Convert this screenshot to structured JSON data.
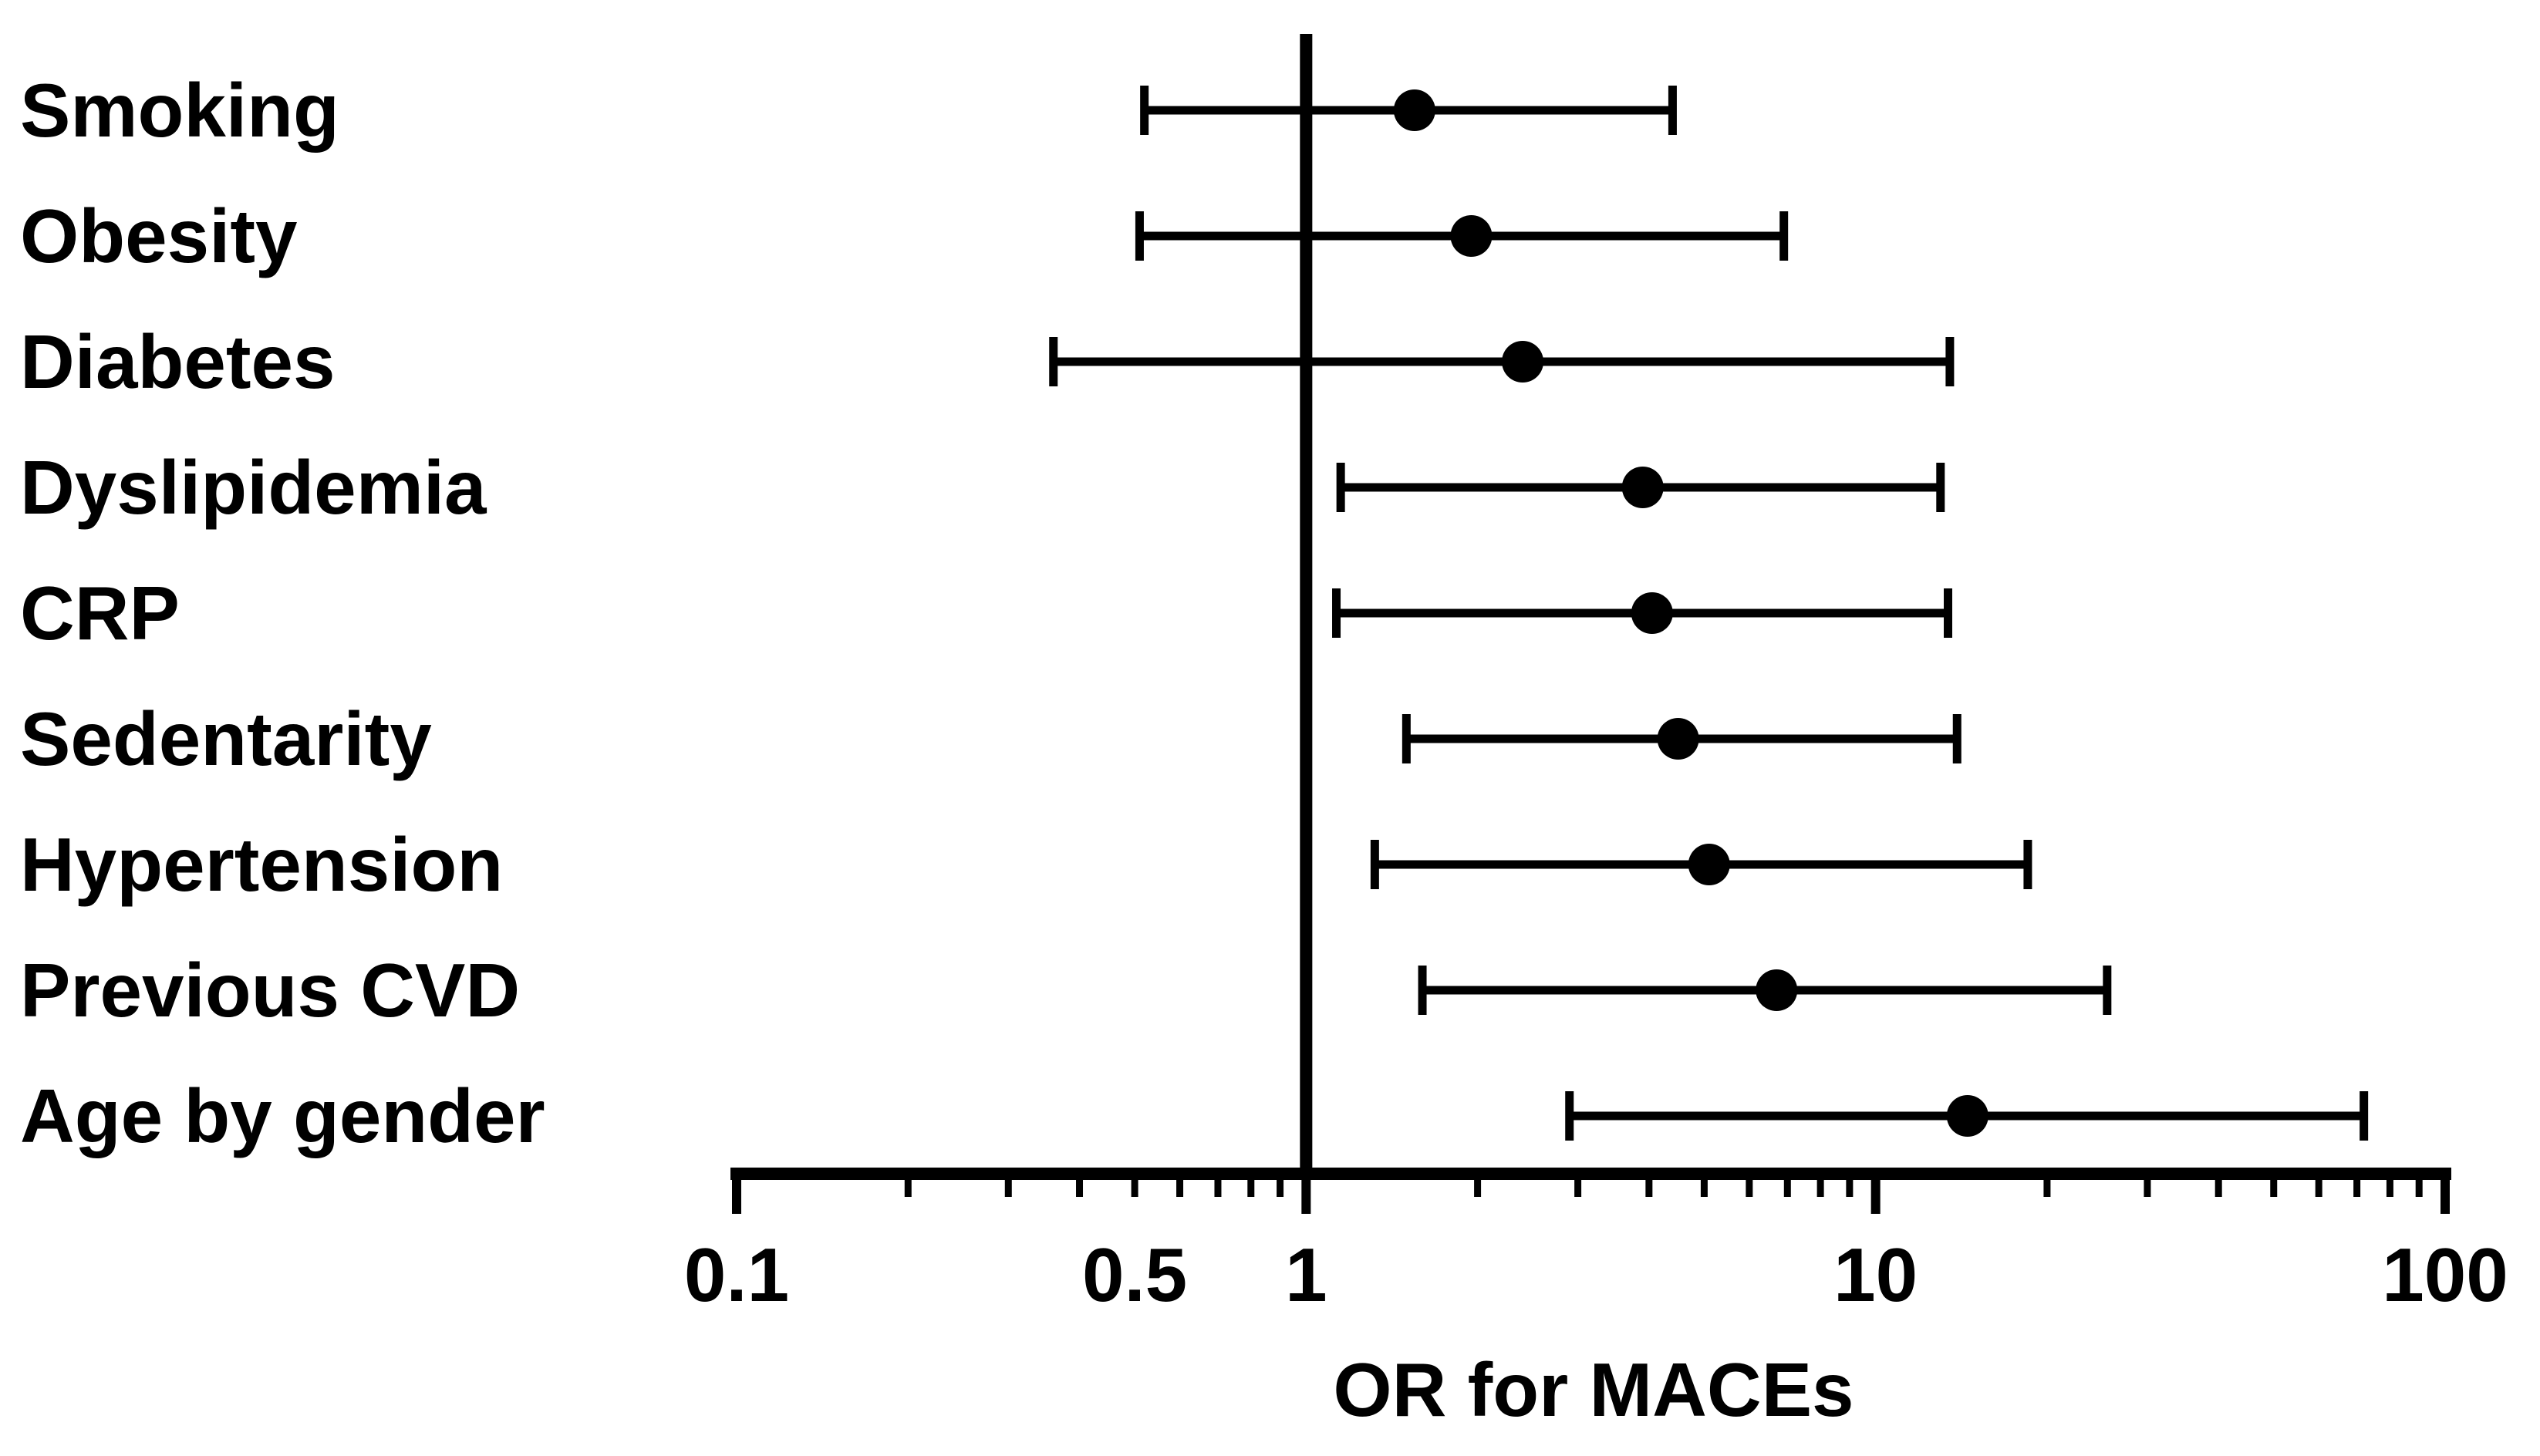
{
  "chart_data": {
    "type": "forest",
    "scale": "log",
    "xlabel": "OR for MACEs",
    "xlim": [
      0.1,
      100
    ],
    "reference_line": 1,
    "major_ticks": [
      0.1,
      1,
      10,
      100
    ],
    "tick_labels": [
      {
        "value": 0.1,
        "label": "0.1"
      },
      {
        "value": 0.5,
        "label": "0.5"
      },
      {
        "value": 1,
        "label": "1"
      },
      {
        "value": 10,
        "label": "10"
      },
      {
        "value": 100,
        "label": "100"
      }
    ],
    "rows": [
      {
        "label": "Smoking",
        "or": 1.55,
        "lower": 0.52,
        "upper": 4.4
      },
      {
        "label": "Obesity",
        "or": 1.95,
        "lower": 0.51,
        "upper": 6.9
      },
      {
        "label": "Diabetes",
        "or": 2.4,
        "lower": 0.36,
        "upper": 13.5
      },
      {
        "label": "Dyslipidemia",
        "or": 3.9,
        "lower": 1.15,
        "upper": 13.0
      },
      {
        "label": "CRP",
        "or": 4.05,
        "lower": 1.13,
        "upper": 13.4
      },
      {
        "label": "Sedentarity",
        "or": 4.5,
        "lower": 1.5,
        "upper": 13.9
      },
      {
        "label": "Hypertension",
        "or": 5.1,
        "lower": 1.32,
        "upper": 18.5
      },
      {
        "label": "Previous CVD",
        "or": 6.7,
        "lower": 1.6,
        "upper": 25.5
      },
      {
        "label": "Age by gender",
        "or": 14.5,
        "lower": 2.9,
        "upper": 72
      }
    ]
  }
}
